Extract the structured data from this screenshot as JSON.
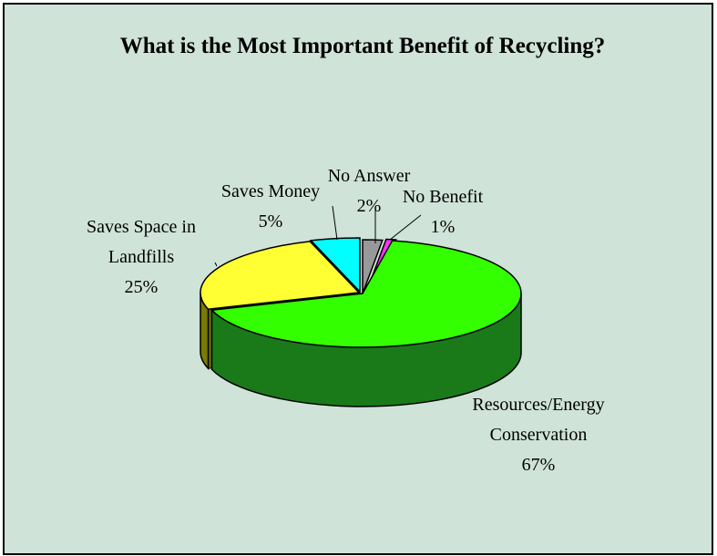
{
  "chart_data": {
    "type": "pie",
    "title": "What is the Most Important Benefit of Recycling?",
    "style": "3d-exploded-pie",
    "background_color": "#cfe3d9",
    "slices": [
      {
        "label_lines": [
          "No Answer",
          "2%"
        ],
        "value": 2,
        "color": "#999999",
        "side_color": "#5c5c5c"
      },
      {
        "label_lines": [
          "No Benefit",
          "1%"
        ],
        "value": 1,
        "color": "#ff33ff",
        "side_color": "#a000a0"
      },
      {
        "label_lines": [
          "Resources/Energy",
          "Conservation",
          "67%"
        ],
        "value": 67,
        "color": "#33ff00",
        "side_color": "#1a7a1a"
      },
      {
        "label_lines": [
          "Saves Space in",
          "Landfills",
          "25%"
        ],
        "value": 25,
        "color": "#ffff33",
        "side_color": "#7a7a00"
      },
      {
        "label_lines": [
          "Saves Money",
          "5%"
        ],
        "value": 5,
        "color": "#00ffff",
        "side_color": "#008a8a"
      }
    ]
  }
}
